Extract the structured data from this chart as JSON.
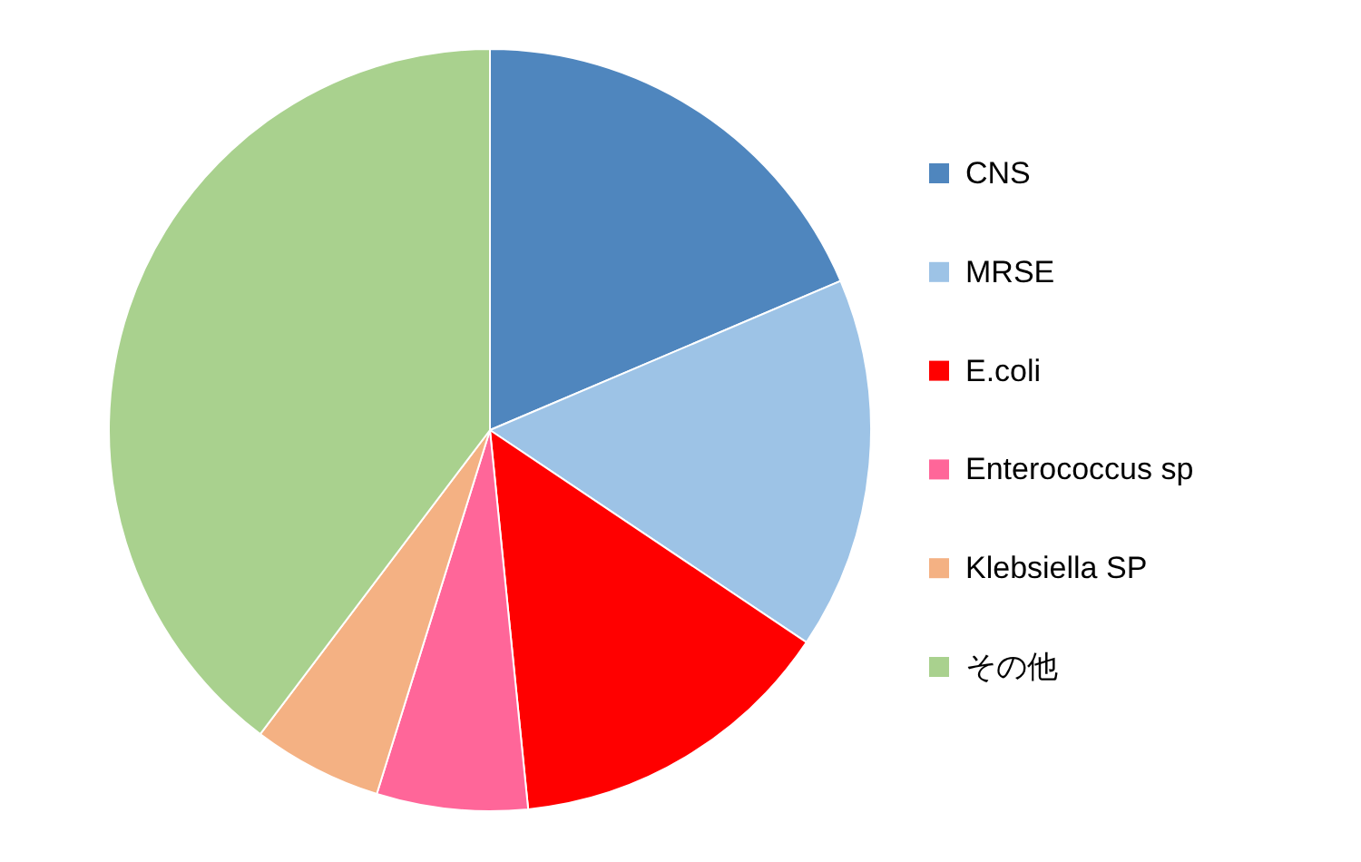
{
  "chart_data": {
    "type": "pie",
    "categories": [
      "CNS",
      "MRSE",
      "E.coli",
      "Enterococcus sp",
      "Klebsiella SP",
      "その他"
    ],
    "values": [
      18.6,
      15.8,
      14.0,
      6.4,
      5.5,
      39.7
    ],
    "colors": [
      "#4f86be",
      "#9dc3e6",
      "#ff0000",
      "#ff6699",
      "#f4b183",
      "#a9d18e"
    ],
    "legend": "right"
  }
}
